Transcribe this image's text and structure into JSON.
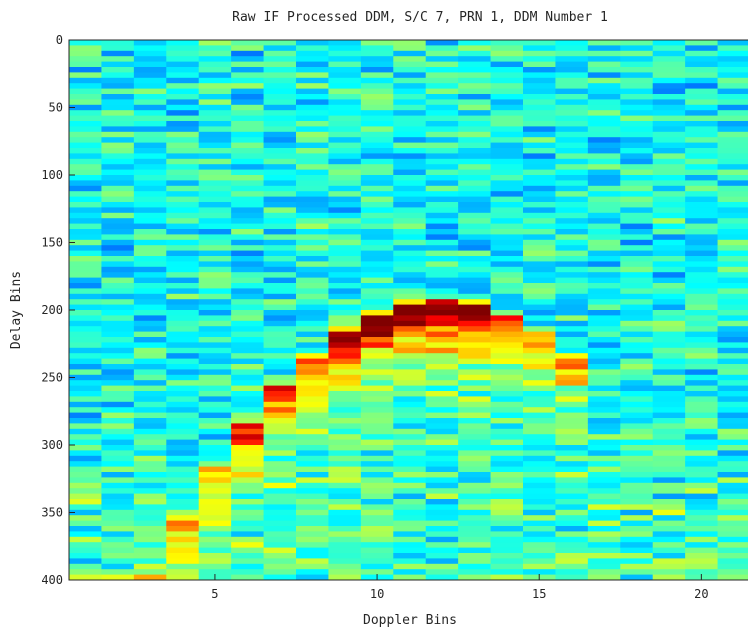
{
  "chart_data": {
    "type": "heatmap",
    "title": "Raw IF Processed DDM, S/C 7, PRN 1, DDM Number 1",
    "xlabel": "Doppler Bins",
    "ylabel": "Delay Bins",
    "xlim": [
      0.5,
      21.5
    ],
    "ylim": [
      0,
      400
    ],
    "y_direction": "reversed",
    "x_ticks": [
      5,
      10,
      15,
      20
    ],
    "y_ticks": [
      0,
      50,
      100,
      150,
      200,
      250,
      300,
      350,
      400
    ],
    "x_tick_labels": [
      "5",
      "10",
      "15",
      "20"
    ],
    "y_tick_labels": [
      "0",
      "50",
      "100",
      "150",
      "200",
      "250",
      "300",
      "350",
      "400"
    ],
    "colormap": "jet",
    "n_doppler_bins": 21,
    "n_delay_bins": 400,
    "grid": false,
    "legend": "none",
    "peak": {
      "doppler_bin": 12,
      "delay_bin": 197
    }
  }
}
